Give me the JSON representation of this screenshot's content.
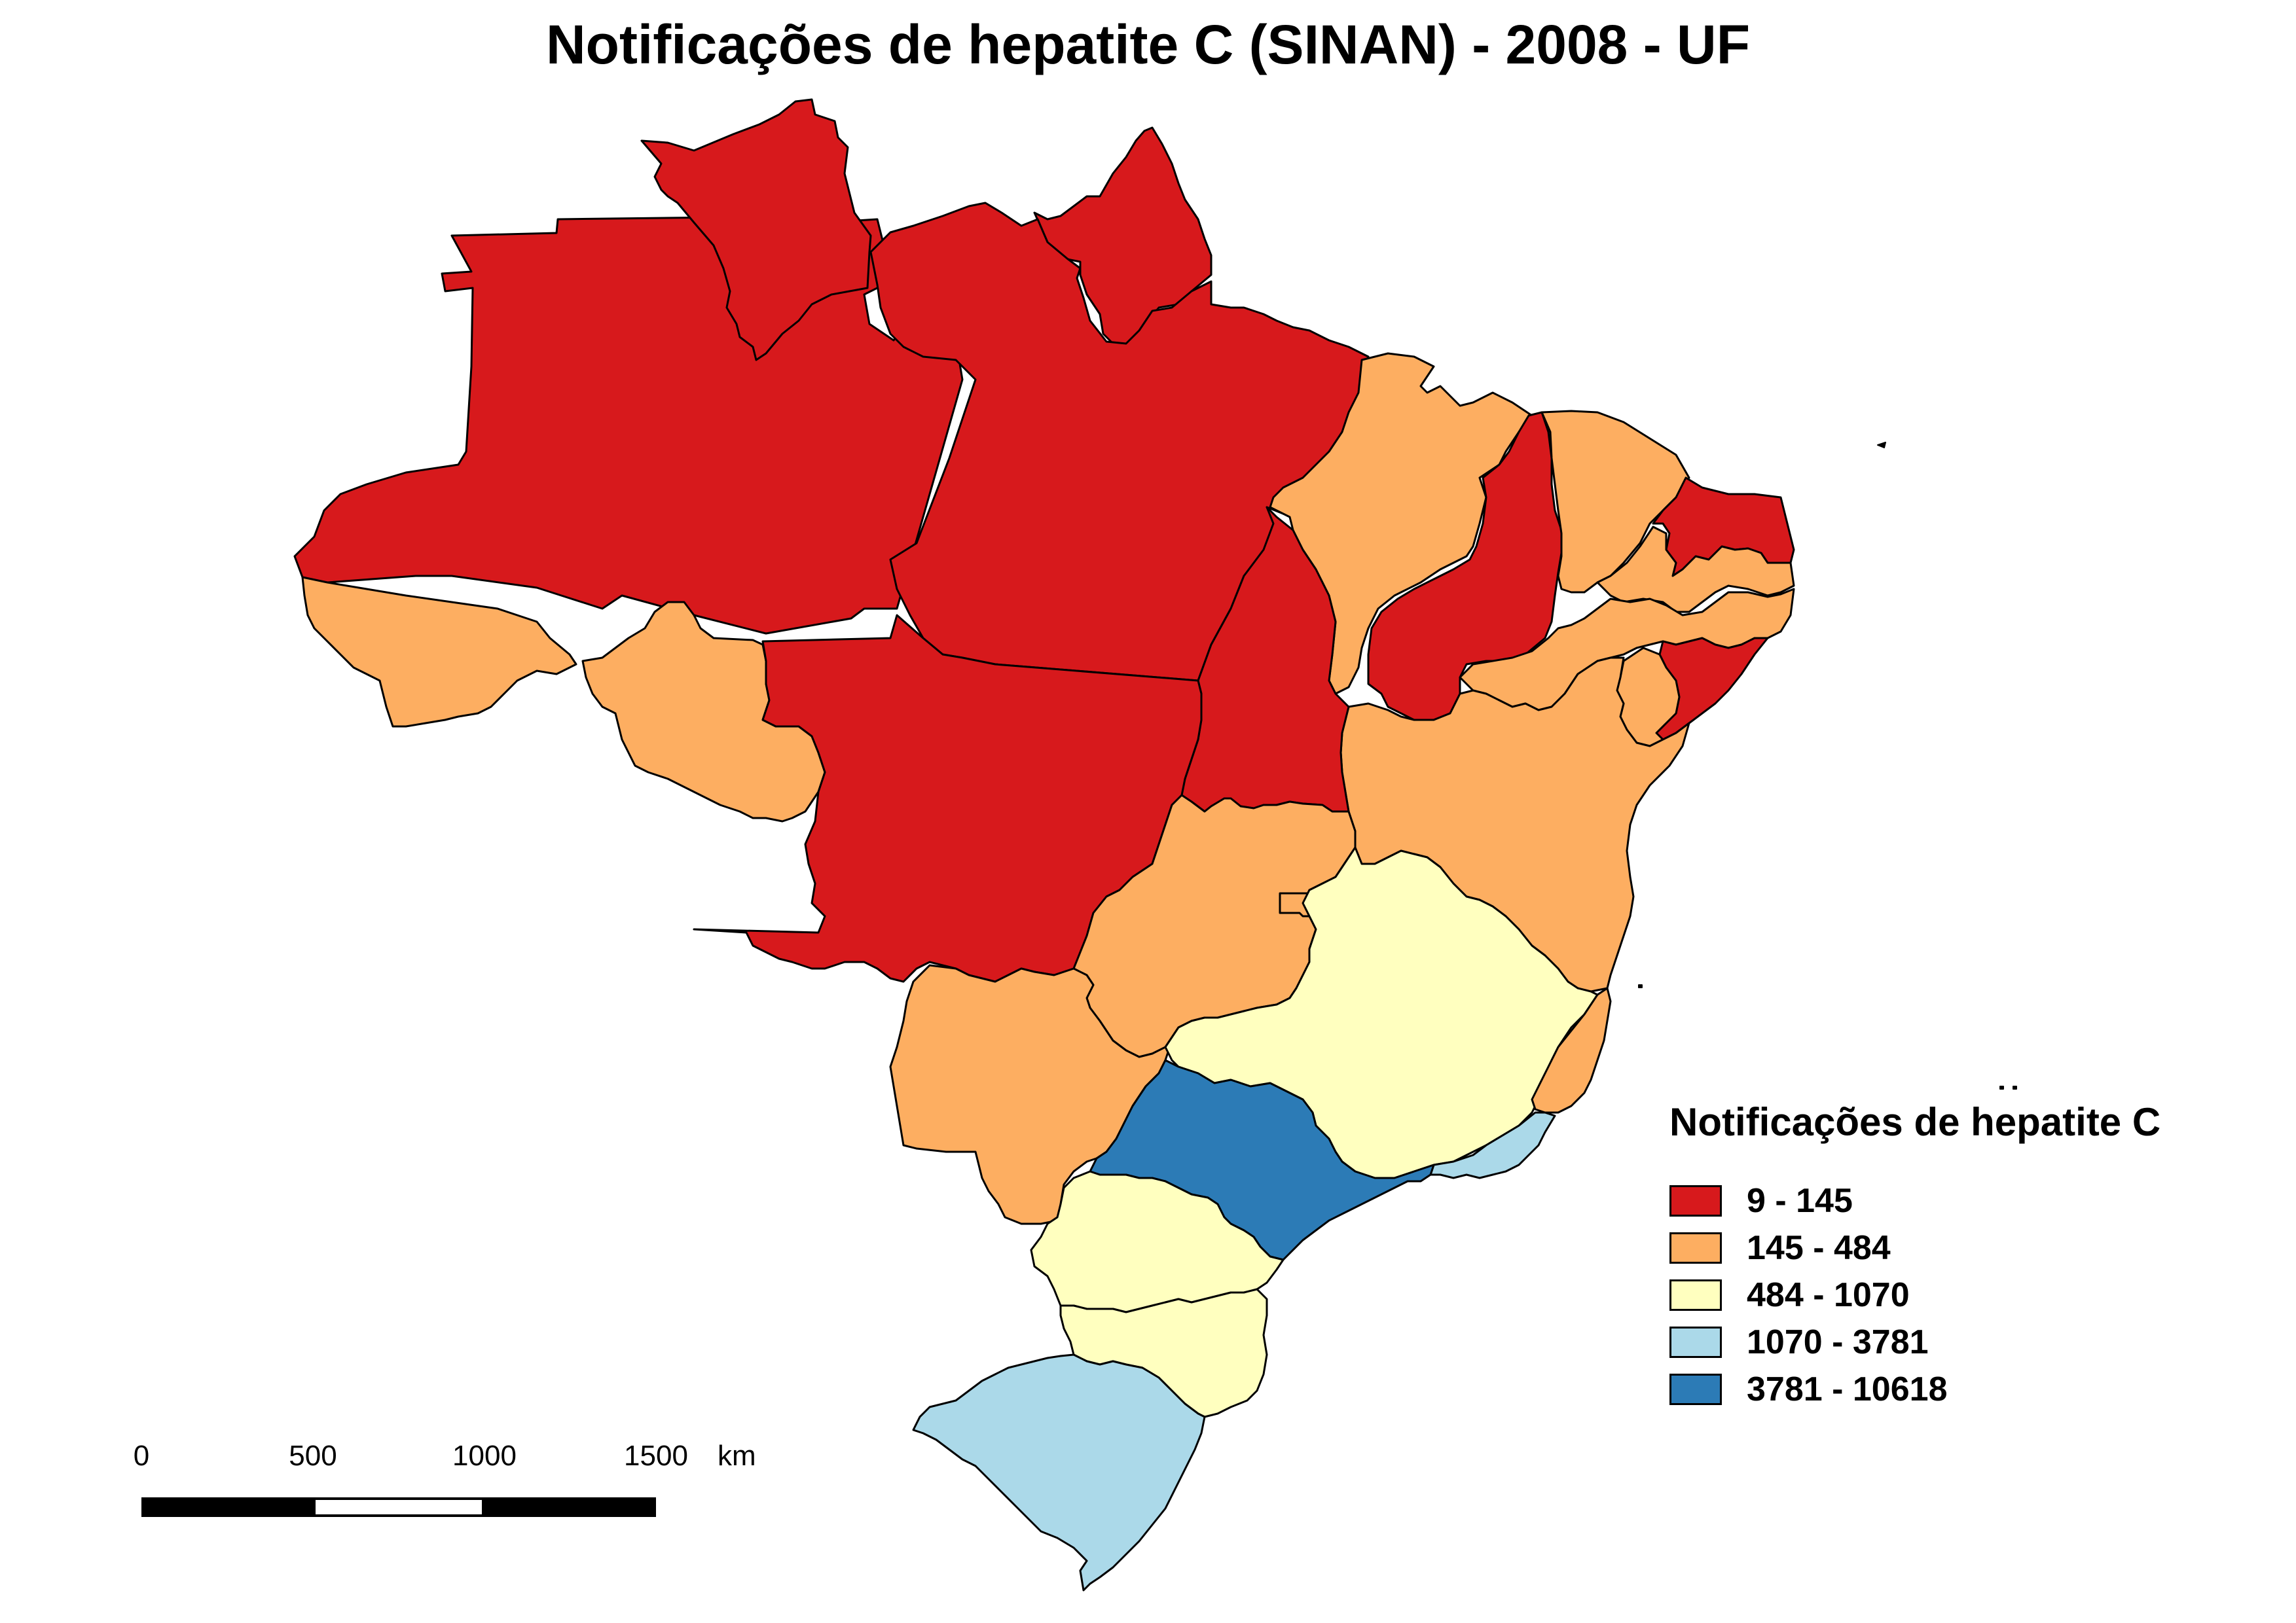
{
  "title": "Notificações de hepatite C (SINAN) - 2008 - UF",
  "legend": {
    "title": "Notificações de hepatite C",
    "classes": [
      {
        "label": "9 - 145",
        "color": "#d7191c"
      },
      {
        "label": "145 - 484",
        "color": "#fdae61"
      },
      {
        "label": "484 - 1070",
        "color": "#ffffbf"
      },
      {
        "label": "1070 - 3781",
        "color": "#abd9e9"
      },
      {
        "label": "3781 - 10618",
        "color": "#2c7bb6"
      }
    ]
  },
  "scale_bar": {
    "ticks": [
      "0",
      "500",
      "1000",
      "1500"
    ],
    "unit": "km"
  },
  "states": [
    {
      "id": "AM",
      "class": 0
    },
    {
      "id": "RR",
      "class": 0
    },
    {
      "id": "AP",
      "class": 0
    },
    {
      "id": "PA",
      "class": 0
    },
    {
      "id": "MT",
      "class": 0
    },
    {
      "id": "TO",
      "class": 0
    },
    {
      "id": "PI",
      "class": 0
    },
    {
      "id": "RN",
      "class": 0
    },
    {
      "id": "AL",
      "class": 0
    },
    {
      "id": "AC",
      "class": 1
    },
    {
      "id": "RO",
      "class": 1
    },
    {
      "id": "MA",
      "class": 1
    },
    {
      "id": "CE",
      "class": 1
    },
    {
      "id": "PB",
      "class": 1
    },
    {
      "id": "PE",
      "class": 1
    },
    {
      "id": "BA",
      "class": 1
    },
    {
      "id": "SE",
      "class": 1
    },
    {
      "id": "GO",
      "class": 1
    },
    {
      "id": "DF",
      "class": 1
    },
    {
      "id": "MS",
      "class": 1
    },
    {
      "id": "ES",
      "class": 1
    },
    {
      "id": "MG",
      "class": 2
    },
    {
      "id": "PR",
      "class": 2
    },
    {
      "id": "SC",
      "class": 2
    },
    {
      "id": "RJ",
      "class": 3
    },
    {
      "id": "RS",
      "class": 3
    },
    {
      "id": "SP",
      "class": 4
    }
  ]
}
